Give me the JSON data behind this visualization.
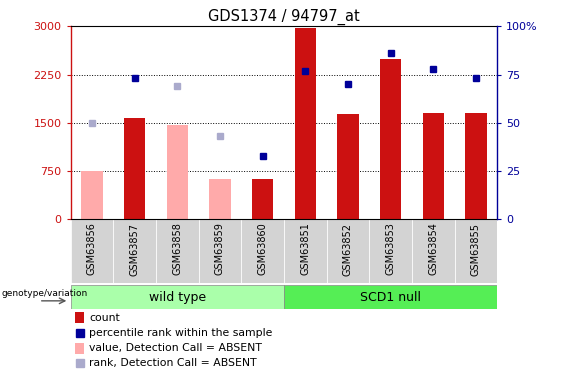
{
  "title": "GDS1374 / 94797_at",
  "samples": [
    "GSM63856",
    "GSM63857",
    "GSM63858",
    "GSM63859",
    "GSM63860",
    "GSM63851",
    "GSM63852",
    "GSM63853",
    "GSM63854",
    "GSM63855"
  ],
  "count_values": [
    null,
    1580,
    null,
    null,
    620,
    2980,
    1630,
    2490,
    1660,
    1650
  ],
  "count_absent_values": [
    750,
    null,
    1460,
    620,
    null,
    null,
    null,
    null,
    null,
    null
  ],
  "percentile_values_pct": [
    null,
    73,
    null,
    null,
    33,
    77,
    70,
    86,
    78,
    73
  ],
  "percentile_absent_values_pct": [
    50,
    null,
    69,
    43,
    null,
    null,
    null,
    null,
    null,
    null
  ],
  "ylim_left": [
    0,
    3000
  ],
  "ylim_right": [
    0,
    100
  ],
  "yticks_left": [
    0,
    750,
    1500,
    2250,
    3000
  ],
  "yticks_right": [
    0,
    25,
    50,
    75,
    100
  ],
  "bar_color_present": "#cc1111",
  "bar_color_absent": "#ffaaaa",
  "dot_color_present": "#000099",
  "dot_color_absent": "#aaaacc",
  "group1_label": "wild type",
  "group2_label": "SCD1 null",
  "group1_color": "#aaffaa",
  "group2_color": "#55ee55",
  "genotype_label": "genotype/variation",
  "legend_items": [
    {
      "label": "count",
      "color": "#cc1111",
      "type": "bar"
    },
    {
      "label": "percentile rank within the sample",
      "color": "#000099",
      "type": "dot"
    },
    {
      "label": "value, Detection Call = ABSENT",
      "color": "#ffaaaa",
      "type": "bar"
    },
    {
      "label": "rank, Detection Call = ABSENT",
      "color": "#aaaacc",
      "type": "dot"
    }
  ]
}
